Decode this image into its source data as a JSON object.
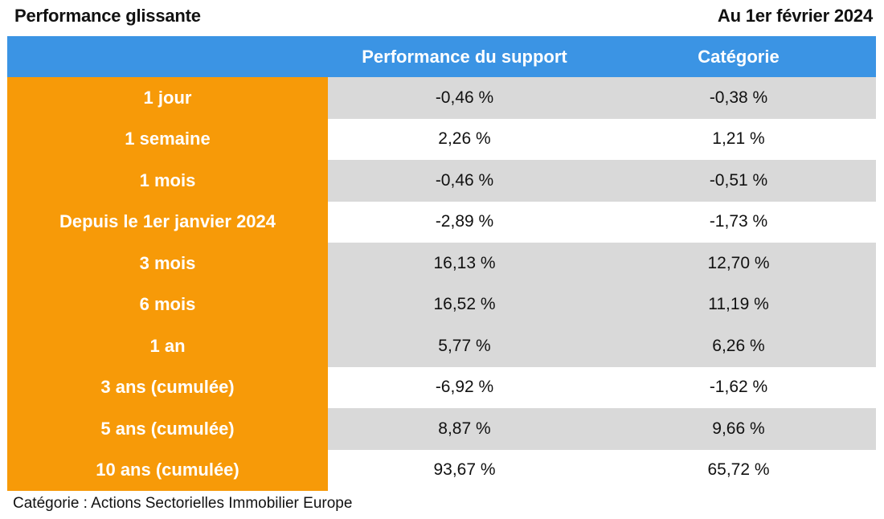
{
  "header": {
    "title": "Performance glissante",
    "date": "Au 1er février 2024"
  },
  "table": {
    "columns": [
      "",
      "Performance du support",
      "Catégorie"
    ],
    "rows": [
      {
        "period": "1 jour",
        "support": "-0,46 %",
        "categorie": "-0,38 %"
      },
      {
        "period": "1 semaine",
        "support": "2,26 %",
        "categorie": "1,21 %"
      },
      {
        "period": "1 mois",
        "support": "-0,46 %",
        "categorie": "-0,51 %"
      },
      {
        "period": "Depuis le 1er janvier 2024",
        "support": "-2,89 %",
        "categorie": "-1,73 %"
      },
      {
        "period": "3 mois",
        "support": "16,13 %",
        "categorie": "12,70 %"
      },
      {
        "period": "6 mois",
        "support": "16,52 %",
        "categorie": "11,19 %"
      },
      {
        "period": "1 an",
        "support": "5,77 %",
        "categorie": "6,26 %"
      },
      {
        "period": "3 ans (cumulée)",
        "support": "-6,92 %",
        "categorie": "-1,62 %"
      },
      {
        "period": "5 ans (cumulée)",
        "support": "8,87 %",
        "categorie": "9,66 %"
      },
      {
        "period": "10 ans (cumulée)",
        "support": "93,67 %",
        "categorie": "65,72 %"
      }
    ]
  },
  "footnote": "Catégorie : Actions Sectorielles Immobilier Europe",
  "colors": {
    "header_blue": "#3b94e4",
    "label_orange": "#f79a08",
    "row_shade": "#d9d9d9",
    "row_plain": "#ffffff"
  }
}
